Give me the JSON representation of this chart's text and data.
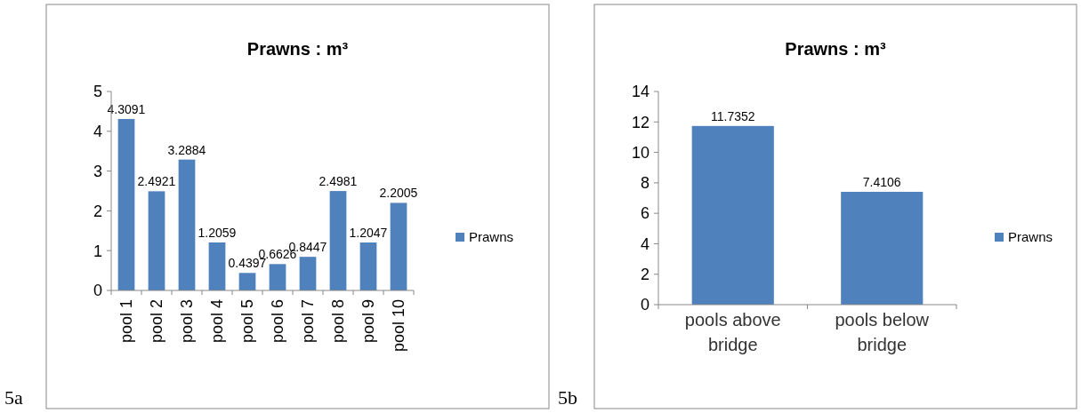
{
  "chart_data": [
    {
      "type": "bar",
      "title": "Prawns : m³",
      "categories": [
        "pool 1",
        "pool 2",
        "pool 3",
        "pool 4",
        "pool 5",
        "pool 6",
        "pool 7",
        "pool 8",
        "pool 9",
        "pool 10"
      ],
      "series": [
        {
          "name": "Prawns",
          "color": "#4f81bd",
          "values": [
            4.3091,
            2.4921,
            3.2884,
            1.2059,
            0.4397,
            0.6626,
            0.8447,
            2.4981,
            1.2047,
            2.2005
          ]
        }
      ],
      "ylim": [
        0,
        5
      ],
      "yticks": [
        0,
        1,
        2,
        3,
        4,
        5
      ],
      "grid": false,
      "legend": "right",
      "data_labels": true,
      "annotations": [
        "5a"
      ]
    },
    {
      "type": "bar",
      "title": "Prawns : m³",
      "categories": [
        "pools above bridge",
        "pools below bridge"
      ],
      "series": [
        {
          "name": "Prawns",
          "color": "#4f81bd",
          "values": [
            11.7352,
            7.4106
          ]
        }
      ],
      "ylim": [
        0,
        14
      ],
      "yticks": [
        0,
        2,
        4,
        6,
        8,
        10,
        12,
        14
      ],
      "grid": false,
      "legend": "right",
      "data_labels": true,
      "annotations": [
        "5b"
      ]
    }
  ]
}
